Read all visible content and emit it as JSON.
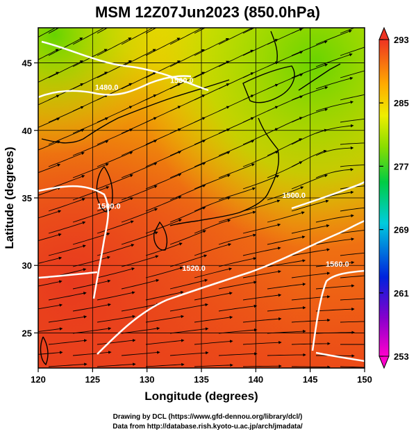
{
  "title": "MSM 12Z07Jun2023 (850.0hPa)",
  "x_axis": {
    "label": "Longitude (degrees)",
    "range": [
      120,
      150
    ],
    "ticks": [
      120,
      125,
      130,
      135,
      140,
      145,
      150
    ]
  },
  "y_axis": {
    "label": "Latitude  (degrees)",
    "range": [
      22.4,
      47.6
    ],
    "ticks": [
      25,
      30,
      35,
      40,
      45
    ]
  },
  "colorbar": {
    "range": [
      253,
      293
    ],
    "ticks": [
      253,
      261,
      269,
      277,
      285,
      293
    ]
  },
  "contours": [
    {
      "label": "1500.0",
      "lon": 126.5,
      "lat": 34.2
    },
    {
      "label": "1500.0",
      "lon": 143.5,
      "lat": 35.0
    },
    {
      "label": "1520.0",
      "lon": 134.3,
      "lat": 29.6
    },
    {
      "label": "1560.0",
      "lon": 147.5,
      "lat": 29.9
    },
    {
      "label": "1500.0",
      "lon": 133.2,
      "lat": 43.5
    },
    {
      "label": "1480.0",
      "lon": 126.3,
      "lat": 43.0
    }
  ],
  "credits": [
    "Drawing by DCL (https://www.gfd-dennou.org/library/dcl/)",
    "Data from http://database.rish.kyoto-u.ac.jp/arch/jmadata/"
  ]
}
